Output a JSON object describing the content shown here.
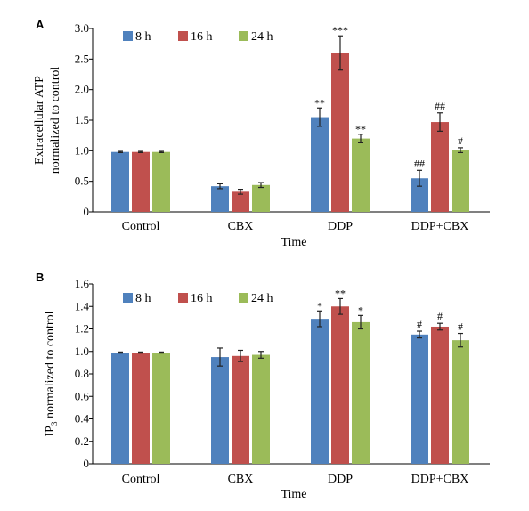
{
  "colors": {
    "s8h": "#4f81bd",
    "s16h": "#c0504d",
    "s24h": "#9bbb59"
  },
  "chart_data": [
    {
      "type": "bar",
      "panel_label": "A",
      "categories": [
        "Control",
        "CBX",
        "DDP",
        "DDP+CBX"
      ],
      "xlabel": "Time",
      "ylabel_lines": [
        "Extracellular ATP",
        "normalized to control"
      ],
      "ylim": [
        0,
        3.0
      ],
      "yticks": [
        "0",
        "0.5",
        "1.0",
        "1.5",
        "2.0",
        "2.5",
        "3.0"
      ],
      "ytick_values": [
        0,
        0.5,
        1.0,
        1.5,
        2.0,
        2.5,
        3.0
      ],
      "grid": false,
      "legend_position": "top-left",
      "series": [
        {
          "name": "8 h",
          "color": "#4f81bd",
          "values": [
            0.98,
            0.42,
            1.55,
            0.55
          ],
          "errors": [
            0.01,
            0.04,
            0.15,
            0.13
          ],
          "sig": [
            "",
            "",
            "**",
            "##"
          ]
        },
        {
          "name": "16 h",
          "color": "#c0504d",
          "values": [
            0.98,
            0.33,
            2.6,
            1.47
          ],
          "errors": [
            0.01,
            0.04,
            0.28,
            0.15
          ],
          "sig": [
            "",
            "",
            "***",
            "##"
          ]
        },
        {
          "name": "24 h",
          "color": "#9bbb59",
          "values": [
            0.98,
            0.44,
            1.2,
            1.01
          ],
          "errors": [
            0.01,
            0.04,
            0.07,
            0.04
          ],
          "sig": [
            "",
            "",
            "**",
            "#"
          ]
        }
      ]
    },
    {
      "type": "bar",
      "panel_label": "B",
      "categories": [
        "Control",
        "CBX",
        "DDP",
        "DDP+CBX"
      ],
      "xlabel": "Time",
      "ylabel_lines": [
        "IP",
        "3",
        " normalized to control"
      ],
      "ylim": [
        0,
        1.6
      ],
      "yticks": [
        "0",
        "0.2",
        "0.4",
        "0.6",
        "0.8",
        "1.0",
        "1.2",
        "1.4",
        "1.6"
      ],
      "ytick_values": [
        0,
        0.2,
        0.4,
        0.6,
        0.8,
        1.0,
        1.2,
        1.4,
        1.6
      ],
      "grid": false,
      "legend_position": "top-left",
      "series": [
        {
          "name": "8 h",
          "color": "#4f81bd",
          "values": [
            0.99,
            0.95,
            1.29,
            1.15
          ],
          "errors": [
            0.005,
            0.08,
            0.07,
            0.03
          ],
          "sig": [
            "",
            "",
            "*",
            "#"
          ]
        },
        {
          "name": "16 h",
          "color": "#c0504d",
          "values": [
            0.99,
            0.96,
            1.4,
            1.22
          ],
          "errors": [
            0.005,
            0.05,
            0.07,
            0.03
          ],
          "sig": [
            "",
            "",
            "**",
            "#"
          ]
        },
        {
          "name": "24 h",
          "color": "#9bbb59",
          "values": [
            0.99,
            0.97,
            1.26,
            1.1
          ],
          "errors": [
            0.005,
            0.03,
            0.06,
            0.06
          ],
          "sig": [
            "",
            "",
            "*",
            "#"
          ]
        }
      ]
    }
  ]
}
